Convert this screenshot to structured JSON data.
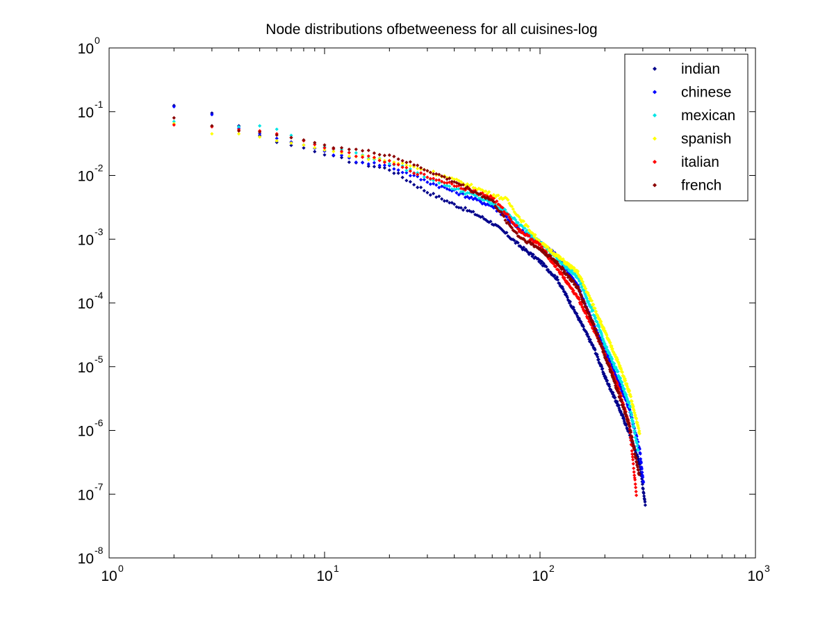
{
  "chart_data": {
    "type": "scatter",
    "title": "Node distributions ofbetweeness for all cuisines-log",
    "xlabel": "",
    "ylabel": "",
    "x_scale": "log",
    "y_scale": "log",
    "xlim": [
      1,
      1000
    ],
    "ylim": [
      1e-08,
      1
    ],
    "grid": false,
    "legend_position": "top-right",
    "x_ticks": [
      {
        "value": 1,
        "base": "10",
        "exp": "0"
      },
      {
        "value": 10,
        "base": "10",
        "exp": "1"
      },
      {
        "value": 100,
        "base": "10",
        "exp": "2"
      },
      {
        "value": 1000,
        "base": "10",
        "exp": "3"
      }
    ],
    "y_ticks": [
      {
        "value": 1,
        "base": "10",
        "exp": "0"
      },
      {
        "value": 0.1,
        "base": "10",
        "exp": "-1"
      },
      {
        "value": 0.01,
        "base": "10",
        "exp": "-2"
      },
      {
        "value": 0.001,
        "base": "10",
        "exp": "-3"
      },
      {
        "value": 0.0001,
        "base": "10",
        "exp": "-4"
      },
      {
        "value": 1e-05,
        "base": "10",
        "exp": "-5"
      },
      {
        "value": 1e-06,
        "base": "10",
        "exp": "-6"
      },
      {
        "value": 1e-07,
        "base": "10",
        "exp": "-7"
      },
      {
        "value": 1e-08,
        "base": "10",
        "exp": "-8"
      }
    ],
    "series": [
      {
        "name": "indian",
        "color": "#00008b",
        "n_points": 308,
        "points": [
          [
            2,
            0.125
          ],
          [
            3,
            0.095
          ],
          [
            4,
            0.06
          ],
          [
            5,
            0.042
          ],
          [
            6,
            0.033
          ],
          [
            8,
            0.027
          ],
          [
            10,
            0.021
          ],
          [
            14,
            0.016
          ],
          [
            20,
            0.0125
          ],
          [
            30,
            0.0055
          ],
          [
            40,
            0.0035
          ],
          [
            50,
            0.0025
          ],
          [
            60,
            0.0018
          ],
          [
            70,
            0.0012
          ],
          [
            80,
            0.0008
          ],
          [
            100,
            0.00045
          ],
          [
            120,
            0.00024
          ],
          [
            150,
            6e-05
          ],
          [
            180,
            1.8e-05
          ],
          [
            200,
            7e-06
          ],
          [
            230,
            2.5e-06
          ],
          [
            260,
            9e-07
          ],
          [
            290,
            3e-07
          ],
          [
            308,
            7e-08
          ]
        ]
      },
      {
        "name": "chinese",
        "color": "#0000ff",
        "n_points": 302,
        "points": [
          [
            2,
            0.12
          ],
          [
            3,
            0.09
          ],
          [
            4,
            0.055
          ],
          [
            5,
            0.045
          ],
          [
            6,
            0.038
          ],
          [
            8,
            0.03
          ],
          [
            10,
            0.024
          ],
          [
            14,
            0.017
          ],
          [
            20,
            0.014
          ],
          [
            30,
            0.008
          ],
          [
            40,
            0.0056
          ],
          [
            50,
            0.0042
          ],
          [
            60,
            0.0033
          ],
          [
            70,
            0.0022
          ],
          [
            80,
            0.0014
          ],
          [
            100,
            0.0009
          ],
          [
            120,
            0.00055
          ],
          [
            150,
            0.00018
          ],
          [
            180,
            4e-05
          ],
          [
            200,
            1.8e-05
          ],
          [
            230,
            6e-06
          ],
          [
            260,
            2.2e-06
          ],
          [
            290,
            5e-07
          ],
          [
            302,
            1.5e-07
          ]
        ]
      },
      {
        "name": "mexican",
        "color": "#00e5e5",
        "n_points": 285,
        "points": [
          [
            2,
            0.07
          ],
          [
            3,
            0.06
          ],
          [
            4,
            0.058
          ],
          [
            5,
            0.06
          ],
          [
            6,
            0.053
          ],
          [
            8,
            0.035
          ],
          [
            10,
            0.028
          ],
          [
            14,
            0.022
          ],
          [
            20,
            0.016
          ],
          [
            30,
            0.0095
          ],
          [
            40,
            0.0062
          ],
          [
            50,
            0.0048
          ],
          [
            60,
            0.0036
          ],
          [
            70,
            0.0027
          ],
          [
            80,
            0.0017
          ],
          [
            100,
            0.0009
          ],
          [
            120,
            0.0005
          ],
          [
            150,
            0.00025
          ],
          [
            180,
            6e-05
          ],
          [
            200,
            2.2e-05
          ],
          [
            230,
            8e-06
          ],
          [
            260,
            2.5e-06
          ],
          [
            285,
            5e-07
          ]
        ]
      },
      {
        "name": "spanish",
        "color": "#ffff00",
        "n_points": 290,
        "points": [
          [
            2,
            0.065
          ],
          [
            3,
            0.045
          ],
          [
            4,
            0.045
          ],
          [
            5,
            0.04
          ],
          [
            6,
            0.035
          ],
          [
            8,
            0.03
          ],
          [
            10,
            0.025
          ],
          [
            14,
            0.02
          ],
          [
            20,
            0.017
          ],
          [
            30,
            0.012
          ],
          [
            40,
            0.0085
          ],
          [
            50,
            0.0065
          ],
          [
            60,
            0.005
          ],
          [
            70,
            0.0042
          ],
          [
            80,
            0.0022
          ],
          [
            100,
            0.0009
          ],
          [
            120,
            0.00055
          ],
          [
            150,
            0.0003
          ],
          [
            180,
            8e-05
          ],
          [
            200,
            3.5e-05
          ],
          [
            230,
            1.2e-05
          ],
          [
            260,
            4e-06
          ],
          [
            290,
            9e-07
          ]
        ]
      },
      {
        "name": "italian",
        "color": "#ff0000",
        "n_points": 280,
        "points": [
          [
            2,
            0.062
          ],
          [
            3,
            0.058
          ],
          [
            4,
            0.052
          ],
          [
            5,
            0.05
          ],
          [
            6,
            0.045
          ],
          [
            8,
            0.035
          ],
          [
            10,
            0.027
          ],
          [
            14,
            0.021
          ],
          [
            20,
            0.016
          ],
          [
            30,
            0.0095
          ],
          [
            40,
            0.0072
          ],
          [
            50,
            0.0055
          ],
          [
            60,
            0.0045
          ],
          [
            70,
            0.0025
          ],
          [
            80,
            0.0014
          ],
          [
            100,
            0.0008
          ],
          [
            120,
            0.00035
          ],
          [
            150,
            0.00012
          ],
          [
            180,
            3.5e-05
          ],
          [
            200,
            1.5e-05
          ],
          [
            230,
            5e-06
          ],
          [
            260,
            1.2e-06
          ],
          [
            280,
            1e-07
          ]
        ]
      },
      {
        "name": "french",
        "color": "#8b0000",
        "n_points": 288,
        "points": [
          [
            2,
            0.08
          ],
          [
            3,
            0.06
          ],
          [
            4,
            0.05
          ],
          [
            5,
            0.048
          ],
          [
            6,
            0.043
          ],
          [
            8,
            0.036
          ],
          [
            10,
            0.03
          ],
          [
            14,
            0.025
          ],
          [
            20,
            0.021
          ],
          [
            30,
            0.012
          ],
          [
            40,
            0.008
          ],
          [
            50,
            0.0055
          ],
          [
            60,
            0.004
          ],
          [
            70,
            0.0019
          ],
          [
            80,
            0.0011
          ],
          [
            100,
            0.0007
          ],
          [
            120,
            0.00043
          ],
          [
            150,
            0.00017
          ],
          [
            180,
            4e-05
          ],
          [
            200,
            1.5e-05
          ],
          [
            230,
            4e-06
          ],
          [
            260,
            1.2e-06
          ],
          [
            288,
            2e-07
          ]
        ]
      }
    ]
  }
}
